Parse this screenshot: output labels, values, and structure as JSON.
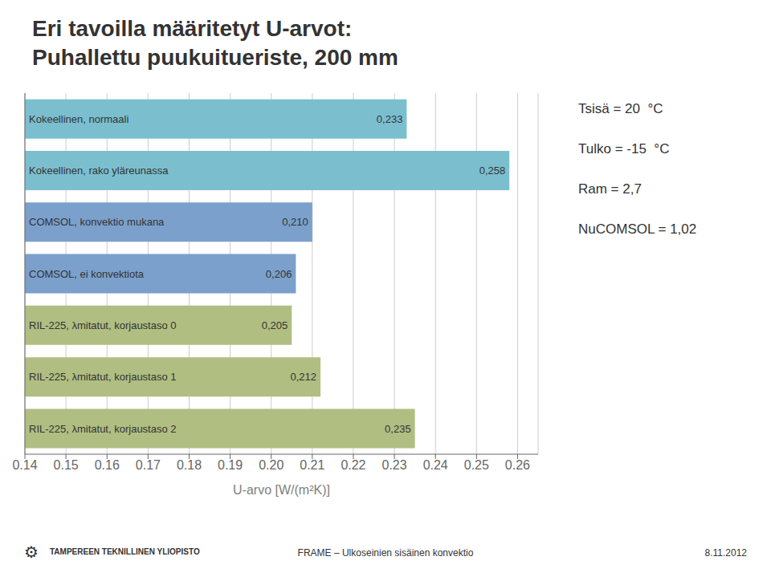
{
  "chart_data": {
    "type": "bar",
    "orientation": "horizontal",
    "title": "Eri tavoilla määritetyt U-arvot:",
    "subtitle": "Puhallettu puukuitueriste, 200 mm",
    "categories": [
      "Kokeellinen, normaali",
      "Kokeellinen, rako yläreunassa",
      "COMSOL, konvektio mukana",
      "COMSOL, ei konvektiota",
      "RIL-225, λmitatut, korjaustaso 0",
      "RIL-225, λmitatut, korjaustaso 1",
      "RIL-225, λmitatut, korjaustaso 2"
    ],
    "values": [
      0.233,
      0.258,
      0.21,
      0.206,
      0.205,
      0.212,
      0.235
    ],
    "value_labels": [
      "0,233",
      "0,258",
      "0,210",
      "0,206",
      "0,205",
      "0,212",
      "0,235"
    ],
    "data_labels": true,
    "colors": [
      "#7bbfcf",
      "#7bbfcf",
      "#7ba0cc",
      "#7ba0cc",
      "#b0be82",
      "#b0be82",
      "#b0be82"
    ],
    "x_label": "U-arvo [W/(m²K)]",
    "xlim": [
      0.14,
      0.265
    ],
    "xticks": [
      0.14,
      0.15,
      0.16,
      0.17,
      0.18,
      0.19,
      {
        "value": 0.2,
        "label": "0.20"
      },
      0.21,
      0.22,
      0.23,
      0.24,
      0.25,
      0.26
    ],
    "grid": true,
    "tick_labels": "x",
    "annotations": [
      "Tsisä = 20  °C",
      "Tulko = -15  °C",
      "Ram = 2,7",
      "NuCOMSOL = 1,02",
      "⚙",
      "TAMPEREEN TEKNILLINEN YLIOPISTO",
      "FRAME – Ulkoseinien sisäinen konvektio",
      "8.11.2012"
    ]
  }
}
